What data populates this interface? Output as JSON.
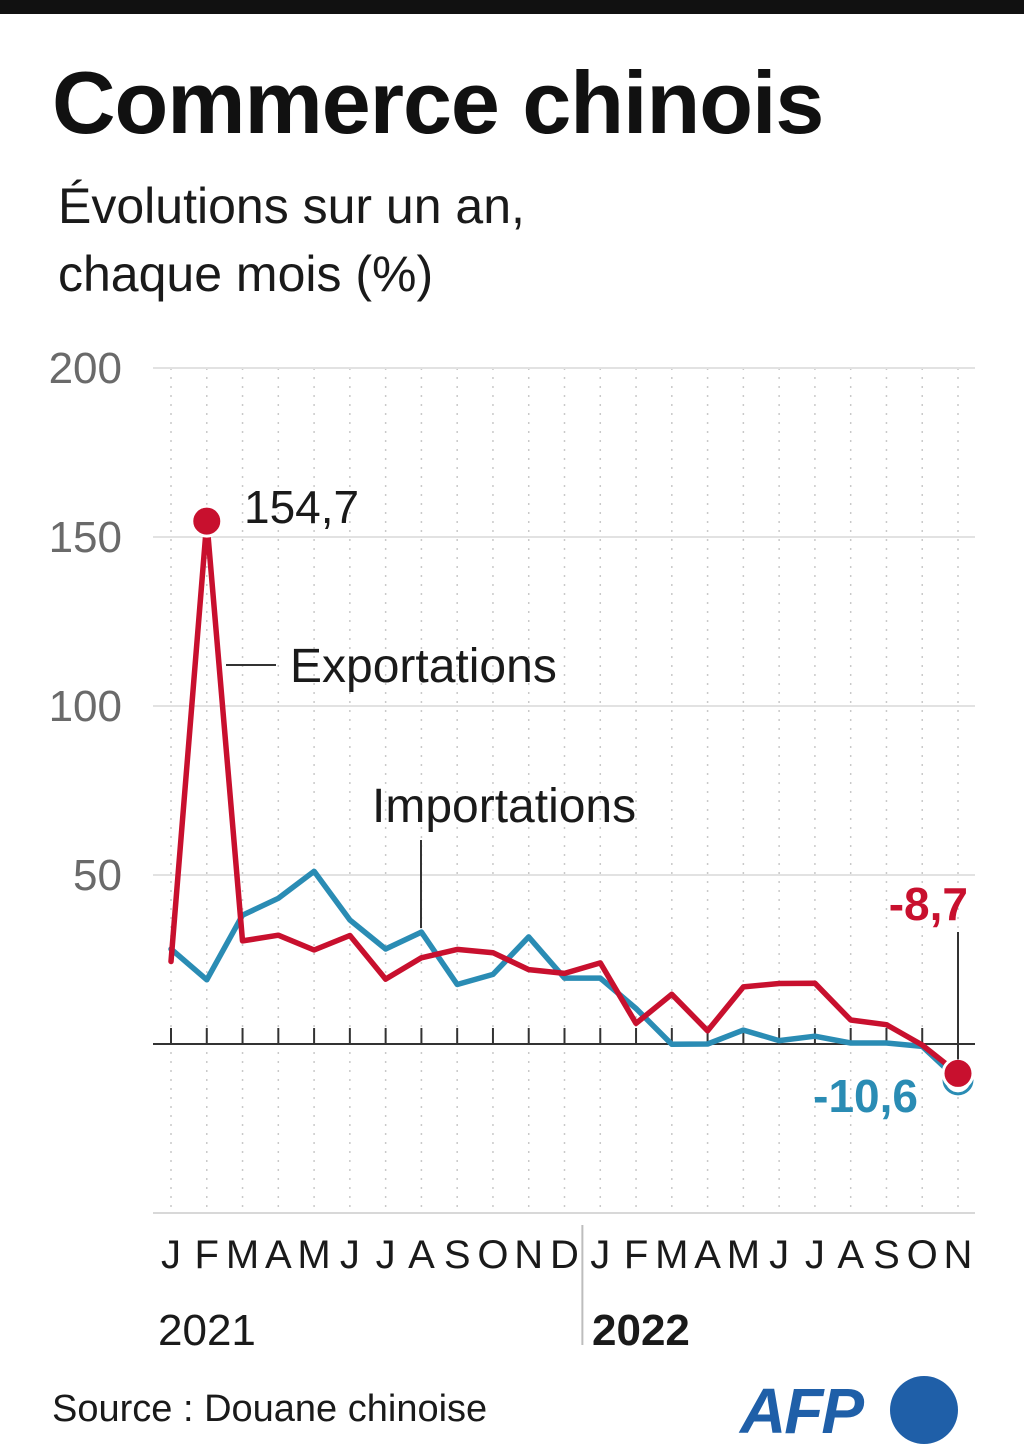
{
  "header": {
    "title": "Commerce chinois",
    "subtitle_line1": "Évolutions sur un an,",
    "subtitle_line2": "chaque mois (%)"
  },
  "footer": {
    "source": "Source : Douane chinoise",
    "logo_text": "AFP"
  },
  "colors": {
    "exports": "#c8102e",
    "imports": "#2a8cb4",
    "brand": "#1f5fa8"
  },
  "chart_data": {
    "type": "line",
    "title": "Commerce chinois",
    "subtitle": "Évolutions sur un an, chaque mois (%)",
    "ylim": [
      -50,
      200
    ],
    "yticks": [
      200,
      150,
      100,
      50
    ],
    "grid": true,
    "categories": [
      "J",
      "F",
      "M",
      "A",
      "M",
      "J",
      "J",
      "A",
      "S",
      "O",
      "N",
      "D",
      "J",
      "F",
      "M",
      "A",
      "M",
      "J",
      "J",
      "A",
      "S",
      "O",
      "N"
    ],
    "years": [
      "2021",
      "2022"
    ],
    "series": [
      {
        "name": "Exportations",
        "values": [
          24.4,
          154.7,
          30.5,
          32.2,
          27.8,
          32.1,
          19.2,
          25.5,
          28.0,
          27.0,
          22.0,
          20.9,
          24.0,
          6.1,
          14.7,
          3.9,
          16.9,
          17.9,
          18.0,
          7.1,
          5.7,
          -0.3,
          -8.7
        ],
        "label": "Exportations",
        "end_label": "154,7"
      },
      {
        "name": "Importations",
        "values": [
          28.1,
          19.0,
          38.1,
          43.1,
          51.1,
          36.7,
          28.1,
          33.1,
          17.6,
          20.6,
          31.7,
          19.5,
          19.5,
          10.5,
          -0.1,
          0.0,
          4.1,
          1.0,
          2.3,
          0.3,
          0.3,
          -0.7,
          -10.6
        ],
        "label": "Importations"
      }
    ],
    "annotations": {
      "peak_exports": "154,7",
      "last_exports": "-8,7",
      "last_imports": "-10,6"
    }
  }
}
